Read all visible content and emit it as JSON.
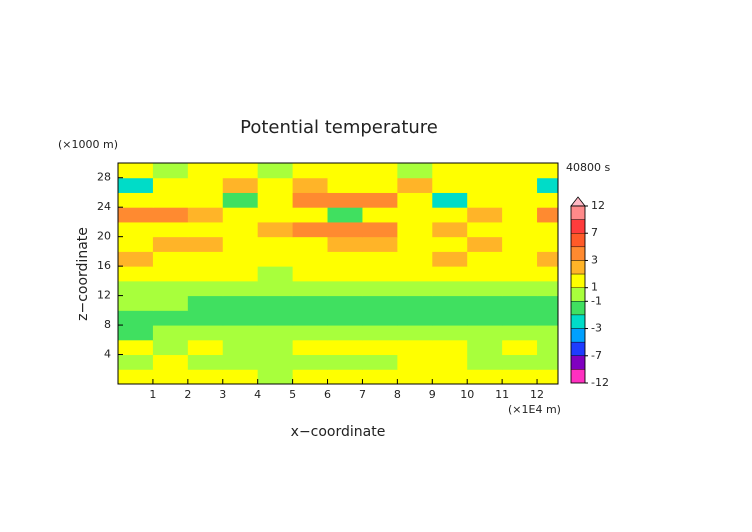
{
  "chart_data": {
    "type": "contour",
    "title": "Potential temperature",
    "y_unit_label": "(×1000 m)",
    "time_label": "40800 s",
    "ylabel": "z−coordinate",
    "xlabel": "x−coordinate",
    "x_unit_label": "(×1E4 m)",
    "xlim": [
      0,
      12.6
    ],
    "ylim": [
      0,
      30
    ],
    "xticks": [
      1,
      2,
      3,
      4,
      5,
      6,
      7,
      8,
      9,
      10,
      11,
      12
    ],
    "yticks": [
      4,
      8,
      12,
      16,
      20,
      24,
      28
    ],
    "x_edges": [
      0,
      1,
      2,
      3,
      4,
      5,
      6,
      7,
      8,
      9,
      10,
      11,
      12,
      12.6
    ],
    "z_edges": [
      0,
      2,
      4,
      6,
      8,
      10,
      12,
      14,
      16,
      18,
      20,
      22,
      24,
      26,
      28,
      30
    ],
    "values": [
      [
        1.5,
        1.5,
        1.5,
        1.5,
        0.5,
        1.5,
        1.5,
        1.5,
        1.5,
        1.5,
        1.5,
        1.5,
        1.5
      ],
      [
        0.5,
        1.5,
        0.5,
        0.5,
        0.5,
        0.5,
        0.5,
        0.5,
        1.5,
        1.5,
        0.5,
        0.5,
        0.5
      ],
      [
        1.5,
        0.5,
        1.5,
        0.5,
        0.5,
        1.5,
        1.5,
        1.5,
        1.5,
        1.5,
        0.5,
        1.5,
        0.5
      ],
      [
        -1.5,
        0.5,
        0.5,
        0.5,
        0.5,
        0.5,
        0.5,
        0.5,
        0.5,
        0.5,
        0.5,
        0.5,
        0.5
      ],
      [
        -1.5,
        -1.5,
        -1.5,
        -1.5,
        -1.5,
        -1.5,
        -1.5,
        -1.5,
        -1.5,
        -1.5,
        -1.5,
        -1.5,
        -1.5
      ],
      [
        0.5,
        0.5,
        -1.5,
        -1.5,
        -1.5,
        -1.5,
        -1.5,
        -1.5,
        -1.5,
        -1.5,
        -1.5,
        -1.5,
        -1.5
      ],
      [
        0.5,
        0.5,
        0.5,
        0.5,
        0.5,
        0.5,
        0.5,
        0.5,
        0.5,
        0.5,
        0.5,
        0.5,
        0.5
      ],
      [
        1.5,
        1.5,
        1.5,
        1.5,
        0.5,
        1.5,
        1.5,
        1.5,
        1.5,
        1.5,
        1.5,
        1.5,
        1.5
      ],
      [
        2.5,
        1.5,
        1.5,
        1.5,
        1.5,
        1.5,
        1.5,
        1.5,
        1.5,
        2.5,
        1.5,
        1.5,
        2.5
      ],
      [
        1.5,
        2.5,
        2.5,
        1.5,
        1.5,
        1.5,
        2.5,
        2.5,
        1.5,
        1.5,
        2.5,
        1.5,
        1.5
      ],
      [
        1.5,
        1.5,
        1.5,
        1.5,
        2.5,
        4,
        4,
        4,
        1.5,
        2.5,
        1.5,
        1.5,
        1.5
      ],
      [
        4,
        4,
        2.5,
        1.5,
        1.5,
        1.5,
        -1.5,
        1.5,
        1.5,
        1.5,
        2.5,
        1.5,
        4
      ],
      [
        1.5,
        1.5,
        1.5,
        -1.5,
        1.5,
        4,
        4,
        4,
        1.5,
        -2.5,
        1.5,
        1.5,
        1.5
      ],
      [
        -2.5,
        1.5,
        1.5,
        2.5,
        1.5,
        2.5,
        1.5,
        1.5,
        2.5,
        1.5,
        1.5,
        1.5,
        -2.5
      ],
      [
        1.5,
        0.5,
        1.5,
        1.5,
        0.5,
        1.5,
        1.5,
        1.5,
        0.5,
        1.5,
        1.5,
        1.5,
        1.5
      ]
    ],
    "levels": [
      12,
      9,
      7,
      5,
      3,
      2,
      1,
      -1,
      -2,
      -3,
      -5,
      -7,
      -9,
      -12
    ],
    "level_colors": [
      "#ff8a8a",
      "#ff3c3c",
      "#ff5a28",
      "#ff8a30",
      "#ffb428",
      "#ffff00",
      "#a8ff3c",
      "#40e060",
      "#00dcc8",
      "#00a0ff",
      "#1e3cff",
      "#8000c0",
      "#ff30c0"
    ],
    "over_color": "#ffb8c4",
    "colorbar_ticks": [
      12,
      7,
      3,
      1,
      -1,
      -3,
      -7,
      -12
    ]
  }
}
